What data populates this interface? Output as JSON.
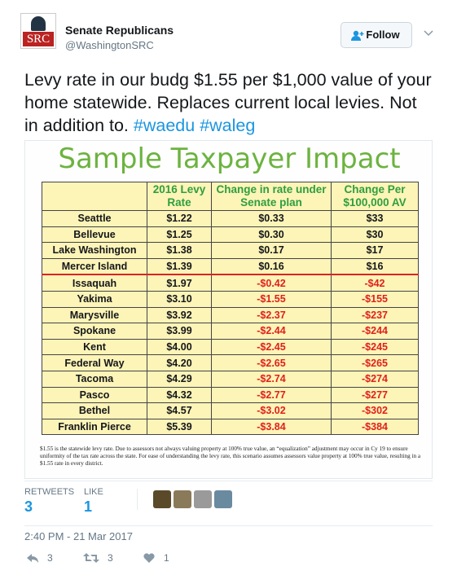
{
  "header": {
    "name": "Senate Republicans",
    "handle": "@WashingtonSRC",
    "avatar": "SRC",
    "follow": "Follow"
  },
  "tweet": {
    "text": "Levy rate in our budg $1.55 per $1,000 value of your home statewide. Replaces current local levies. Not in addition to.",
    "hashtags": [
      "#waedu",
      "#waleg"
    ]
  },
  "image": {
    "title": "Sample Taxpayer Impact",
    "table": {
      "columns": [
        "2016 Levy Rate",
        "Change in rate under Senate plan",
        "Change Per $100,000 AV"
      ],
      "rows": [
        [
          "Seattle",
          "$1.22",
          "$0.33",
          "$33"
        ],
        [
          "Bellevue",
          "$1.25",
          "$0.30",
          "$30"
        ],
        [
          "Lake Washington",
          "$1.38",
          "$0.17",
          "$17"
        ],
        [
          "Mercer Island",
          "$1.39",
          "$0.16",
          "$16"
        ],
        [
          "Issaquah",
          "$1.97",
          "-$0.42",
          "-$42"
        ],
        [
          "Yakima",
          "$3.10",
          "-$1.55",
          "-$155"
        ],
        [
          "Marysville",
          "$3.92",
          "-$2.37",
          "-$237"
        ],
        [
          "Spokane",
          "$3.99",
          "-$2.44",
          "-$244"
        ],
        [
          "Kent",
          "$4.00",
          "-$2.45",
          "-$245"
        ],
        [
          "Federal Way",
          "$4.20",
          "-$2.65",
          "-$265"
        ],
        [
          "Tacoma",
          "$4.29",
          "-$2.74",
          "-$274"
        ],
        [
          "Pasco",
          "$4.32",
          "-$2.77",
          "-$277"
        ],
        [
          "Bethel",
          "$4.57",
          "-$3.02",
          "-$302"
        ],
        [
          "Franklin Pierce",
          "$5.39",
          "-$3.84",
          "-$384"
        ]
      ]
    },
    "footnote": "$1.55 is the statewide levy rate. Due to assessors not always valuing property at 100% true value, an “equalization” adjustment may occur in Cy 19 to ensure uniformity of the tax rate across the state. For ease of understanding the levy rate, this scenario assumes assessors value property at 100% true value, resulting in a $1.55 rate in every district."
  },
  "stats": {
    "retweets_label": "RETWEETS",
    "retweets": "3",
    "likes_label": "LIKE",
    "likes": "1"
  },
  "timestamp": "2:40 PM - 21 Mar 2017",
  "actions": {
    "replies": "3",
    "retweets": "3",
    "likes": "1"
  }
}
